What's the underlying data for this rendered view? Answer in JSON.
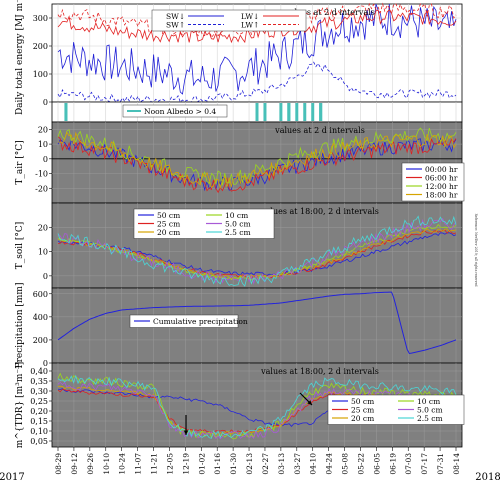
{
  "year_left": "2017",
  "year_right": "2018",
  "x_tick_labels": [
    "08-29",
    "09-12",
    "09-26",
    "10-10",
    "10-24",
    "11-07",
    "11-21",
    "12-05",
    "12-19",
    "01-02",
    "01-16",
    "01-30",
    "02-13",
    "02-27",
    "03-13",
    "03-27",
    "04-10",
    "04-24",
    "05-08",
    "05-22",
    "06-05",
    "06-19",
    "07-03",
    "07-17",
    "07-31",
    "08-14"
  ],
  "side_note": "Reference: NveTerv 2019; all rights reserved",
  "colors": {
    "panel_gray": "#808080",
    "sw_blue": "#1f1fd6",
    "lw_red": "#e32222",
    "teal": "#48c0b8",
    "c50": "#2222dd",
    "c25": "#dd2222",
    "c20": "#d6a400",
    "c10": "#9ad61e",
    "c5": "#a85ad6",
    "c25b": "#4ad6d6"
  },
  "chart_data": [
    {
      "type": "line",
      "panel": "energy",
      "ylabel": "Daily total energy [MJ m⁻²]",
      "ylim": [
        0,
        350
      ],
      "yticks": [
        0,
        100,
        200,
        300
      ],
      "annotation": "values at 2 d intervals",
      "grid": true,
      "legend": "top-center",
      "series": [
        {
          "name": "SW↓",
          "style": "solid",
          "color": "#1f1fd6",
          "approx": [
            180,
            160,
            150,
            140,
            130,
            120,
            110,
            100,
            90,
            80,
            90,
            100,
            120,
            140,
            170,
            200,
            230,
            260,
            280,
            290,
            295,
            300,
            290,
            280,
            270,
            250
          ]
        },
        {
          "name": "SW↑",
          "style": "dashed",
          "color": "#1f1fd6",
          "approx": [
            30,
            25,
            20,
            15,
            10,
            10,
            10,
            10,
            10,
            10,
            15,
            20,
            30,
            40,
            60,
            90,
            130,
            120,
            60,
            40,
            30,
            30,
            30,
            30,
            30,
            30
          ]
        },
        {
          "name": "LW↓",
          "style": "solid",
          "color": "#e32222",
          "approx": [
            290,
            280,
            270,
            260,
            250,
            245,
            240,
            240,
            235,
            230,
            230,
            235,
            240,
            250,
            260,
            265,
            270,
            280,
            290,
            300,
            305,
            305,
            300,
            300,
            295,
            290
          ]
        },
        {
          "name": "LW↑",
          "style": "dashed",
          "color": "#e32222",
          "approx": [
            320,
            315,
            305,
            295,
            285,
            275,
            270,
            265,
            260,
            255,
            255,
            260,
            265,
            275,
            285,
            295,
            305,
            315,
            325,
            330,
            335,
            335,
            330,
            330,
            325,
            320
          ]
        }
      ]
    },
    {
      "type": "bar",
      "panel": "albedo",
      "legend_entry": "Noon Albedo > 0.4",
      "color": "#48c0b8",
      "events": [
        "02-20",
        "02-27",
        "03-04",
        "03-13",
        "03-18",
        "03-22",
        "03-27",
        "03-31",
        "04-03",
        "04-10",
        "04-17",
        "04-22"
      ]
    },
    {
      "type": "line",
      "panel": "air_temperature",
      "ylabel": "T_air [°C]",
      "ylim": [
        -30,
        25
      ],
      "yticks": [
        -20,
        -10,
        0,
        10,
        20
      ],
      "annotation": "values at 2 d intervals",
      "grid": true,
      "legend": "bottom-right",
      "series": [
        {
          "name": "00:00 hr",
          "color": "#2222dd",
          "approx": [
            12,
            10,
            8,
            5,
            2,
            -2,
            -6,
            -10,
            -14,
            -16,
            -17,
            -17,
            -15,
            -12,
            -8,
            -5,
            -2,
            1,
            3,
            5,
            7,
            8,
            9,
            9,
            10,
            10
          ]
        },
        {
          "name": "06:00 hr",
          "color": "#dd2222",
          "approx": [
            11,
            9,
            7,
            4,
            1,
            -3,
            -7,
            -11,
            -15,
            -17,
            -18,
            -18,
            -16,
            -13,
            -9,
            -6,
            -3,
            0,
            2,
            4,
            6,
            7,
            8,
            8,
            9,
            9
          ]
        },
        {
          "name": "12:00 hr",
          "color": "#9ad61e",
          "approx": [
            18,
            16,
            13,
            10,
            6,
            2,
            -2,
            -6,
            -10,
            -12,
            -13,
            -13,
            -10,
            -6,
            -2,
            2,
            5,
            8,
            10,
            12,
            14,
            15,
            16,
            16,
            16,
            15
          ]
        },
        {
          "name": "18:00 hr",
          "color": "#d6a400",
          "approx": [
            15,
            13,
            11,
            8,
            4,
            0,
            -4,
            -8,
            -12,
            -14,
            -15,
            -15,
            -12,
            -9,
            -5,
            -1,
            2,
            5,
            7,
            9,
            11,
            12,
            13,
            13,
            13,
            12
          ]
        }
      ]
    },
    {
      "type": "line",
      "panel": "soil_temperature",
      "ylabel": "T_soil [°C]",
      "ylim": [
        -5,
        30
      ],
      "yticks": [
        0,
        10,
        20
      ],
      "annotation": "values at 18:00, 2 d intervals",
      "grid": true,
      "legend": "top-left",
      "series": [
        {
          "name": "50 cm",
          "color": "#2222dd",
          "approx": [
            14,
            13.5,
            13,
            12.5,
            11.5,
            10,
            8,
            6,
            4,
            2.5,
            1.5,
            1,
            0.8,
            0.8,
            1,
            1.5,
            2.5,
            4,
            6,
            8,
            10,
            12,
            14,
            16,
            17,
            17
          ]
        },
        {
          "name": "25 cm",
          "color": "#dd2222",
          "approx": [
            14,
            13.5,
            13,
            12,
            11,
            9,
            7,
            5,
            3,
            1.5,
            0.5,
            0,
            -0.3,
            -0.2,
            0.5,
            1.5,
            3,
            5,
            7.5,
            10,
            12.5,
            14.5,
            16.5,
            18,
            18.5,
            18
          ]
        },
        {
          "name": "20 cm",
          "color": "#d6a400",
          "approx": [
            14.5,
            14,
            13,
            12,
            10.5,
            8.5,
            6.5,
            4.5,
            2.5,
            1,
            0,
            -0.5,
            -0.5,
            -0.3,
            0.5,
            2,
            3.5,
            5.5,
            8,
            10.5,
            13,
            15,
            17,
            18.5,
            19,
            18.5
          ]
        },
        {
          "name": "10 cm",
          "color": "#9ad61e",
          "approx": [
            15,
            14.5,
            13.5,
            12,
            10,
            8,
            6,
            4,
            2,
            0.5,
            -0.5,
            -1,
            -1,
            -0.5,
            0.5,
            2.5,
            4.5,
            6.5,
            9,
            12,
            14.5,
            16.5,
            18.5,
            20,
            20.5,
            20
          ]
        },
        {
          "name": "5.0 cm",
          "color": "#a85ad6",
          "approx": [
            15.5,
            15,
            13.5,
            12,
            9.5,
            7.5,
            5.5,
            3.5,
            1.5,
            0,
            -1,
            -1.5,
            -1.5,
            -1,
            0.5,
            3,
            5.5,
            8,
            10.5,
            13,
            15.5,
            17.5,
            19.5,
            21,
            21.5,
            21
          ]
        },
        {
          "name": "2.5 cm",
          "color": "#4ad6d6",
          "approx": [
            16,
            15.5,
            14,
            12,
            9.5,
            7,
            5,
            3,
            1,
            -0.5,
            -1.5,
            -2,
            -2,
            -1.5,
            0.5,
            3.5,
            6,
            9,
            12,
            14.5,
            17,
            19.5,
            21.5,
            23,
            23,
            22
          ]
        }
      ]
    },
    {
      "type": "line",
      "panel": "precipitation",
      "ylabel": "Precipitation [mm]",
      "ylim": [
        0,
        650
      ],
      "yticks": [
        0,
        200,
        400,
        600
      ],
      "grid": true,
      "legend": "center",
      "series": [
        {
          "name": "Cumulative precipitation",
          "color": "#2222dd",
          "values": [
            200,
            300,
            380,
            430,
            460,
            470,
            480,
            485,
            490,
            492,
            494,
            496,
            500,
            510,
            520,
            540,
            560,
            580,
            595,
            600,
            610,
            615,
            80,
            110,
            150,
            200
          ]
        }
      ]
    },
    {
      "type": "line",
      "panel": "soil_moisture",
      "ylabel": "m^{TDR} [m³m⁻³]",
      "ylim": [
        0.02,
        0.44
      ],
      "yticks": [
        0.05,
        0.1,
        0.15,
        0.2,
        0.25,
        0.3,
        0.35,
        0.4
      ],
      "ytick_labels": [
        "0,05",
        "0,10",
        "0,15",
        "0,20",
        "0,25",
        "0,30",
        "0,35",
        "0,40"
      ],
      "annotation": "values at 18:00, 2 d intervals",
      "grid": true,
      "legend": "bottom-right",
      "series": [
        {
          "name": "50 cm",
          "color": "#2222dd",
          "approx": [
            0.31,
            0.3,
            0.3,
            0.29,
            0.29,
            0.28,
            0.27,
            0.27,
            0.26,
            0.25,
            0.23,
            0.2,
            0.16,
            0.14,
            0.13,
            0.13,
            0.14,
            0.2,
            0.27,
            0.28,
            0.27,
            0.26,
            0.25,
            0.24,
            0.23,
            0.22
          ]
        },
        {
          "name": "25 cm",
          "color": "#dd2222",
          "approx": [
            0.3,
            0.3,
            0.29,
            0.29,
            0.28,
            0.28,
            0.27,
            0.16,
            0.11,
            0.1,
            0.1,
            0.1,
            0.1,
            0.11,
            0.13,
            0.19,
            0.25,
            0.28,
            0.28,
            0.27,
            0.27,
            0.26,
            0.26,
            0.25,
            0.25,
            0.24
          ]
        },
        {
          "name": "20 cm",
          "color": "#d6a400",
          "approx": [
            0.32,
            0.31,
            0.31,
            0.3,
            0.3,
            0.29,
            0.28,
            0.15,
            0.1,
            0.09,
            0.09,
            0.09,
            0.09,
            0.1,
            0.13,
            0.2,
            0.26,
            0.29,
            0.29,
            0.28,
            0.28,
            0.27,
            0.27,
            0.26,
            0.26,
            0.25
          ]
        },
        {
          "name": "10 cm",
          "color": "#9ad61e",
          "approx": [
            0.37,
            0.36,
            0.35,
            0.35,
            0.34,
            0.33,
            0.32,
            0.14,
            0.09,
            0.08,
            0.08,
            0.08,
            0.08,
            0.1,
            0.14,
            0.23,
            0.3,
            0.32,
            0.31,
            0.3,
            0.3,
            0.29,
            0.29,
            0.28,
            0.28,
            0.27
          ]
        },
        {
          "name": "5.0 cm",
          "color": "#a85ad6",
          "approx": [
            0.33,
            0.33,
            0.32,
            0.32,
            0.31,
            0.3,
            0.29,
            0.13,
            0.09,
            0.08,
            0.08,
            0.08,
            0.08,
            0.09,
            0.12,
            0.2,
            0.27,
            0.3,
            0.29,
            0.29,
            0.28,
            0.28,
            0.27,
            0.27,
            0.26,
            0.26
          ]
        },
        {
          "name": "2.5 cm",
          "color": "#4ad6d6",
          "approx": [
            0.36,
            0.36,
            0.35,
            0.35,
            0.34,
            0.33,
            0.32,
            0.14,
            0.09,
            0.08,
            0.08,
            0.08,
            0.09,
            0.11,
            0.16,
            0.26,
            0.33,
            0.35,
            0.34,
            0.33,
            0.33,
            0.32,
            0.31,
            0.31,
            0.3,
            0.29
          ]
        }
      ]
    }
  ]
}
